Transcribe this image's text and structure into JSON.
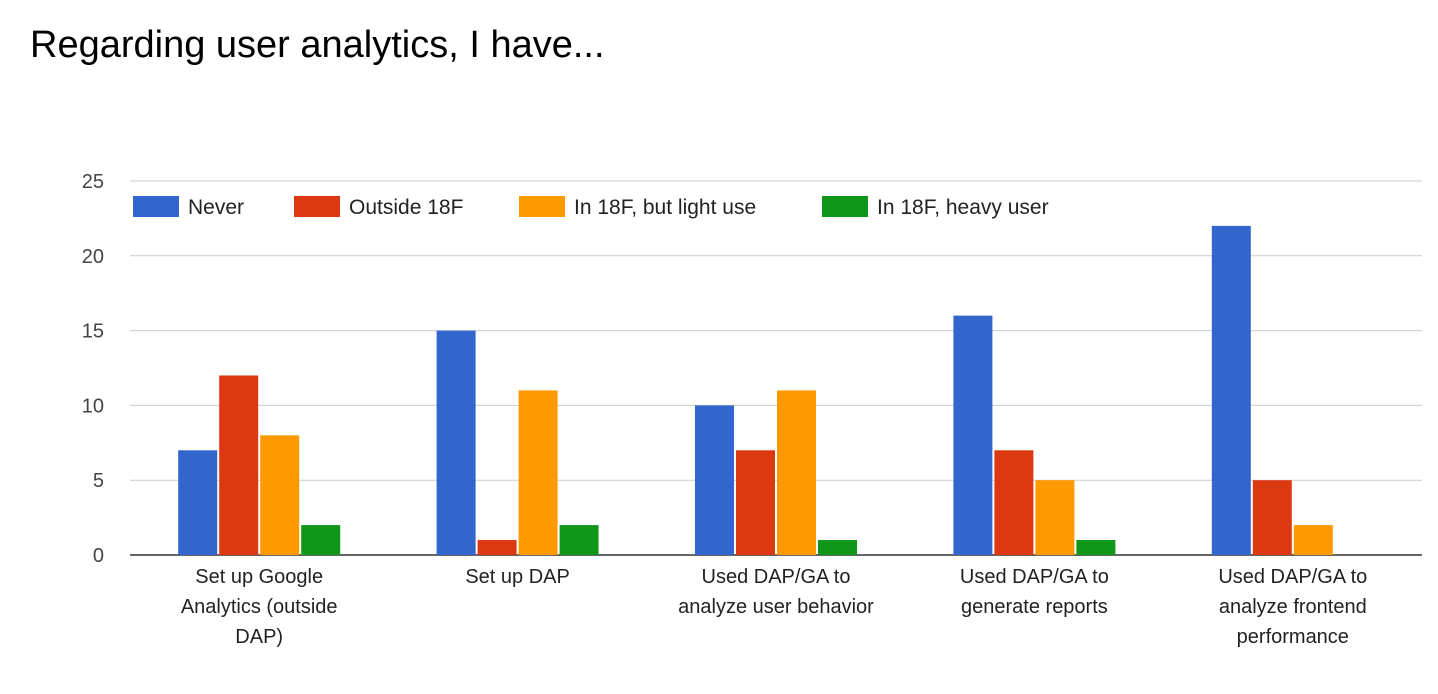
{
  "chart_data": {
    "type": "bar",
    "title": "Regarding user analytics, I have...",
    "categories": [
      [
        "Set up Google",
        "Analytics (outside",
        "DAP)"
      ],
      [
        "Set up DAP"
      ],
      [
        "Used DAP/GA to",
        "analyze user behavior"
      ],
      [
        "Used DAP/GA to",
        "generate reports"
      ],
      [
        "Used DAP/GA to",
        "analyze frontend",
        "performance"
      ]
    ],
    "series": [
      {
        "name": "Never",
        "color": "#3366cc",
        "values": [
          7,
          15,
          10,
          16,
          22
        ]
      },
      {
        "name": "Outside 18F",
        "color": "#dc3912",
        "values": [
          12,
          1,
          7,
          7,
          5
        ]
      },
      {
        "name": "In 18F, but light use",
        "color": "#ff9900",
        "values": [
          8,
          11,
          11,
          5,
          2
        ]
      },
      {
        "name": "In 18F, heavy user",
        "color": "#109618",
        "values": [
          2,
          2,
          1,
          1,
          0
        ]
      }
    ],
    "ylim": [
      0,
      25
    ],
    "yticks": [
      0,
      5,
      10,
      15,
      20,
      25
    ],
    "grid": true,
    "legend": "top"
  }
}
